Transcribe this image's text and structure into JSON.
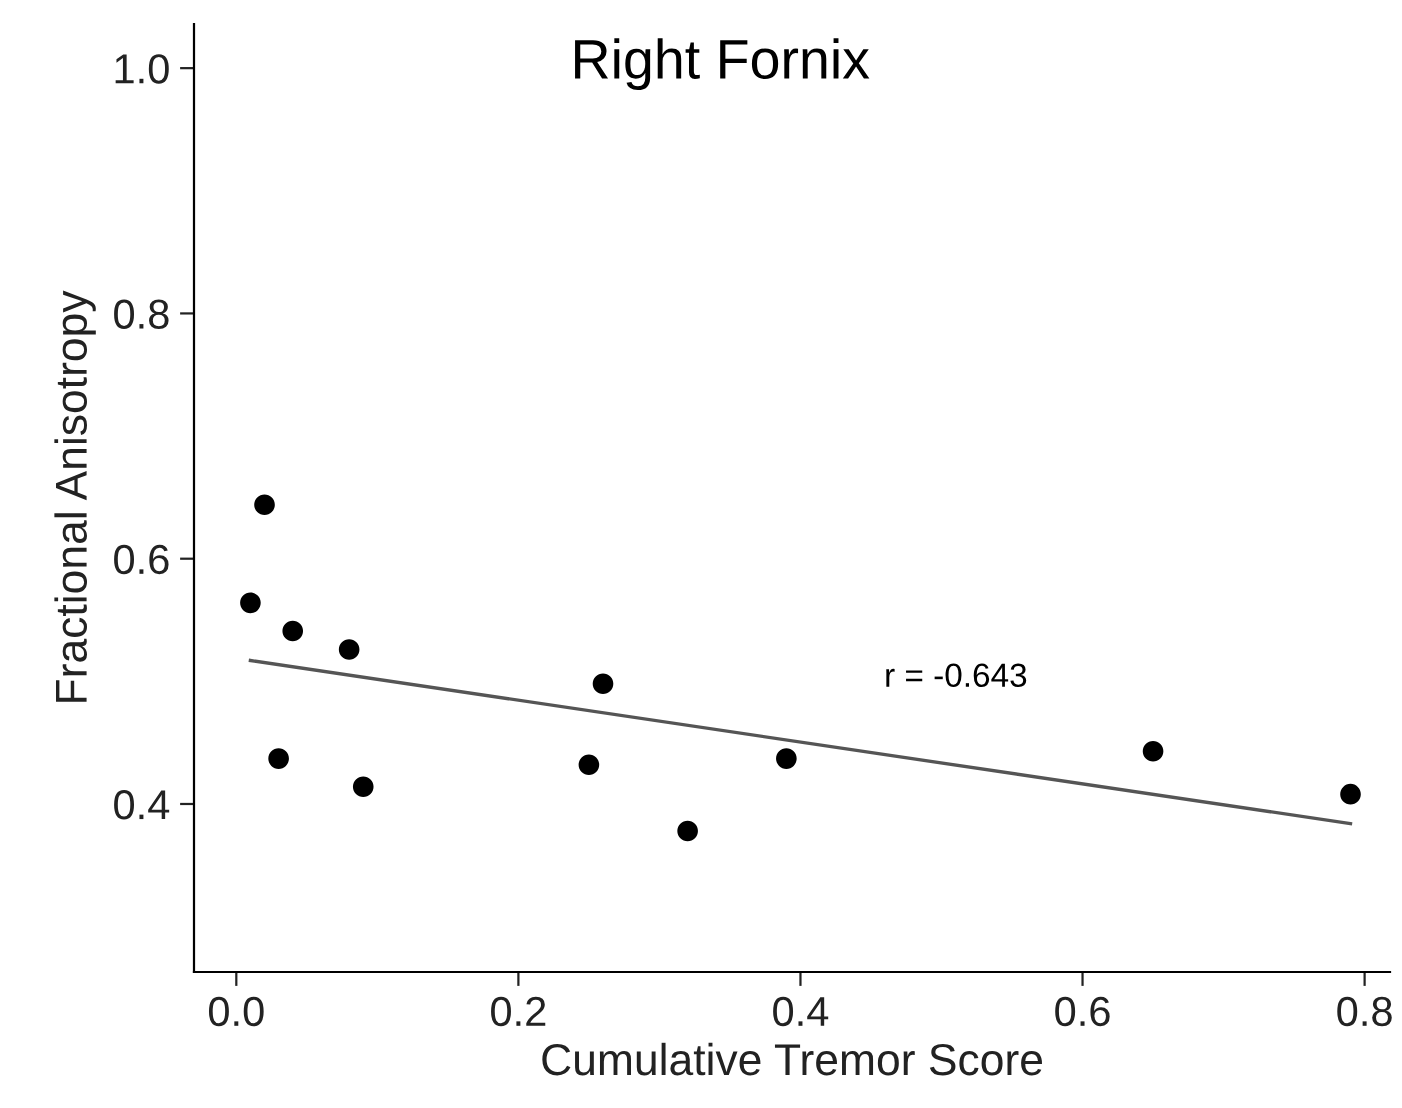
{
  "chart_data": {
    "type": "scatter",
    "title": "Right Fornix",
    "xlabel": "Cumulative Tremor Score",
    "ylabel": "Fractional Anisotropy",
    "x": [
      0.01,
      0.02,
      0.03,
      0.04,
      0.08,
      0.09,
      0.25,
      0.26,
      0.32,
      0.39,
      0.65,
      0.79
    ],
    "series": [
      {
        "color": "#000000",
        "marker": "circle",
        "values": [
          0.564,
          0.644,
          0.437,
          0.541,
          0.526,
          0.414,
          0.432,
          0.498,
          0.378,
          0.437,
          0.443,
          0.408
        ]
      },
      {
        "type": "line",
        "color": "#555555",
        "line_style": "solid",
        "marker": "none",
        "x": [
          0.01,
          0.79
        ],
        "values": [
          0.517,
          0.384
        ]
      }
    ],
    "xlim": [
      -0.03,
      0.818
    ],
    "ylim": [
      0.263,
      1.036
    ],
    "xticks": [
      {
        "value": 0,
        "label": "0.0"
      },
      0.2,
      0.4,
      0.6,
      0.8
    ],
    "yticks": [
      0.4,
      0.6,
      0.8,
      {
        "value": 1,
        "label": "1.0"
      }
    ],
    "grid": false,
    "legend": false,
    "annotations": [
      "r = -0.643"
    ]
  }
}
